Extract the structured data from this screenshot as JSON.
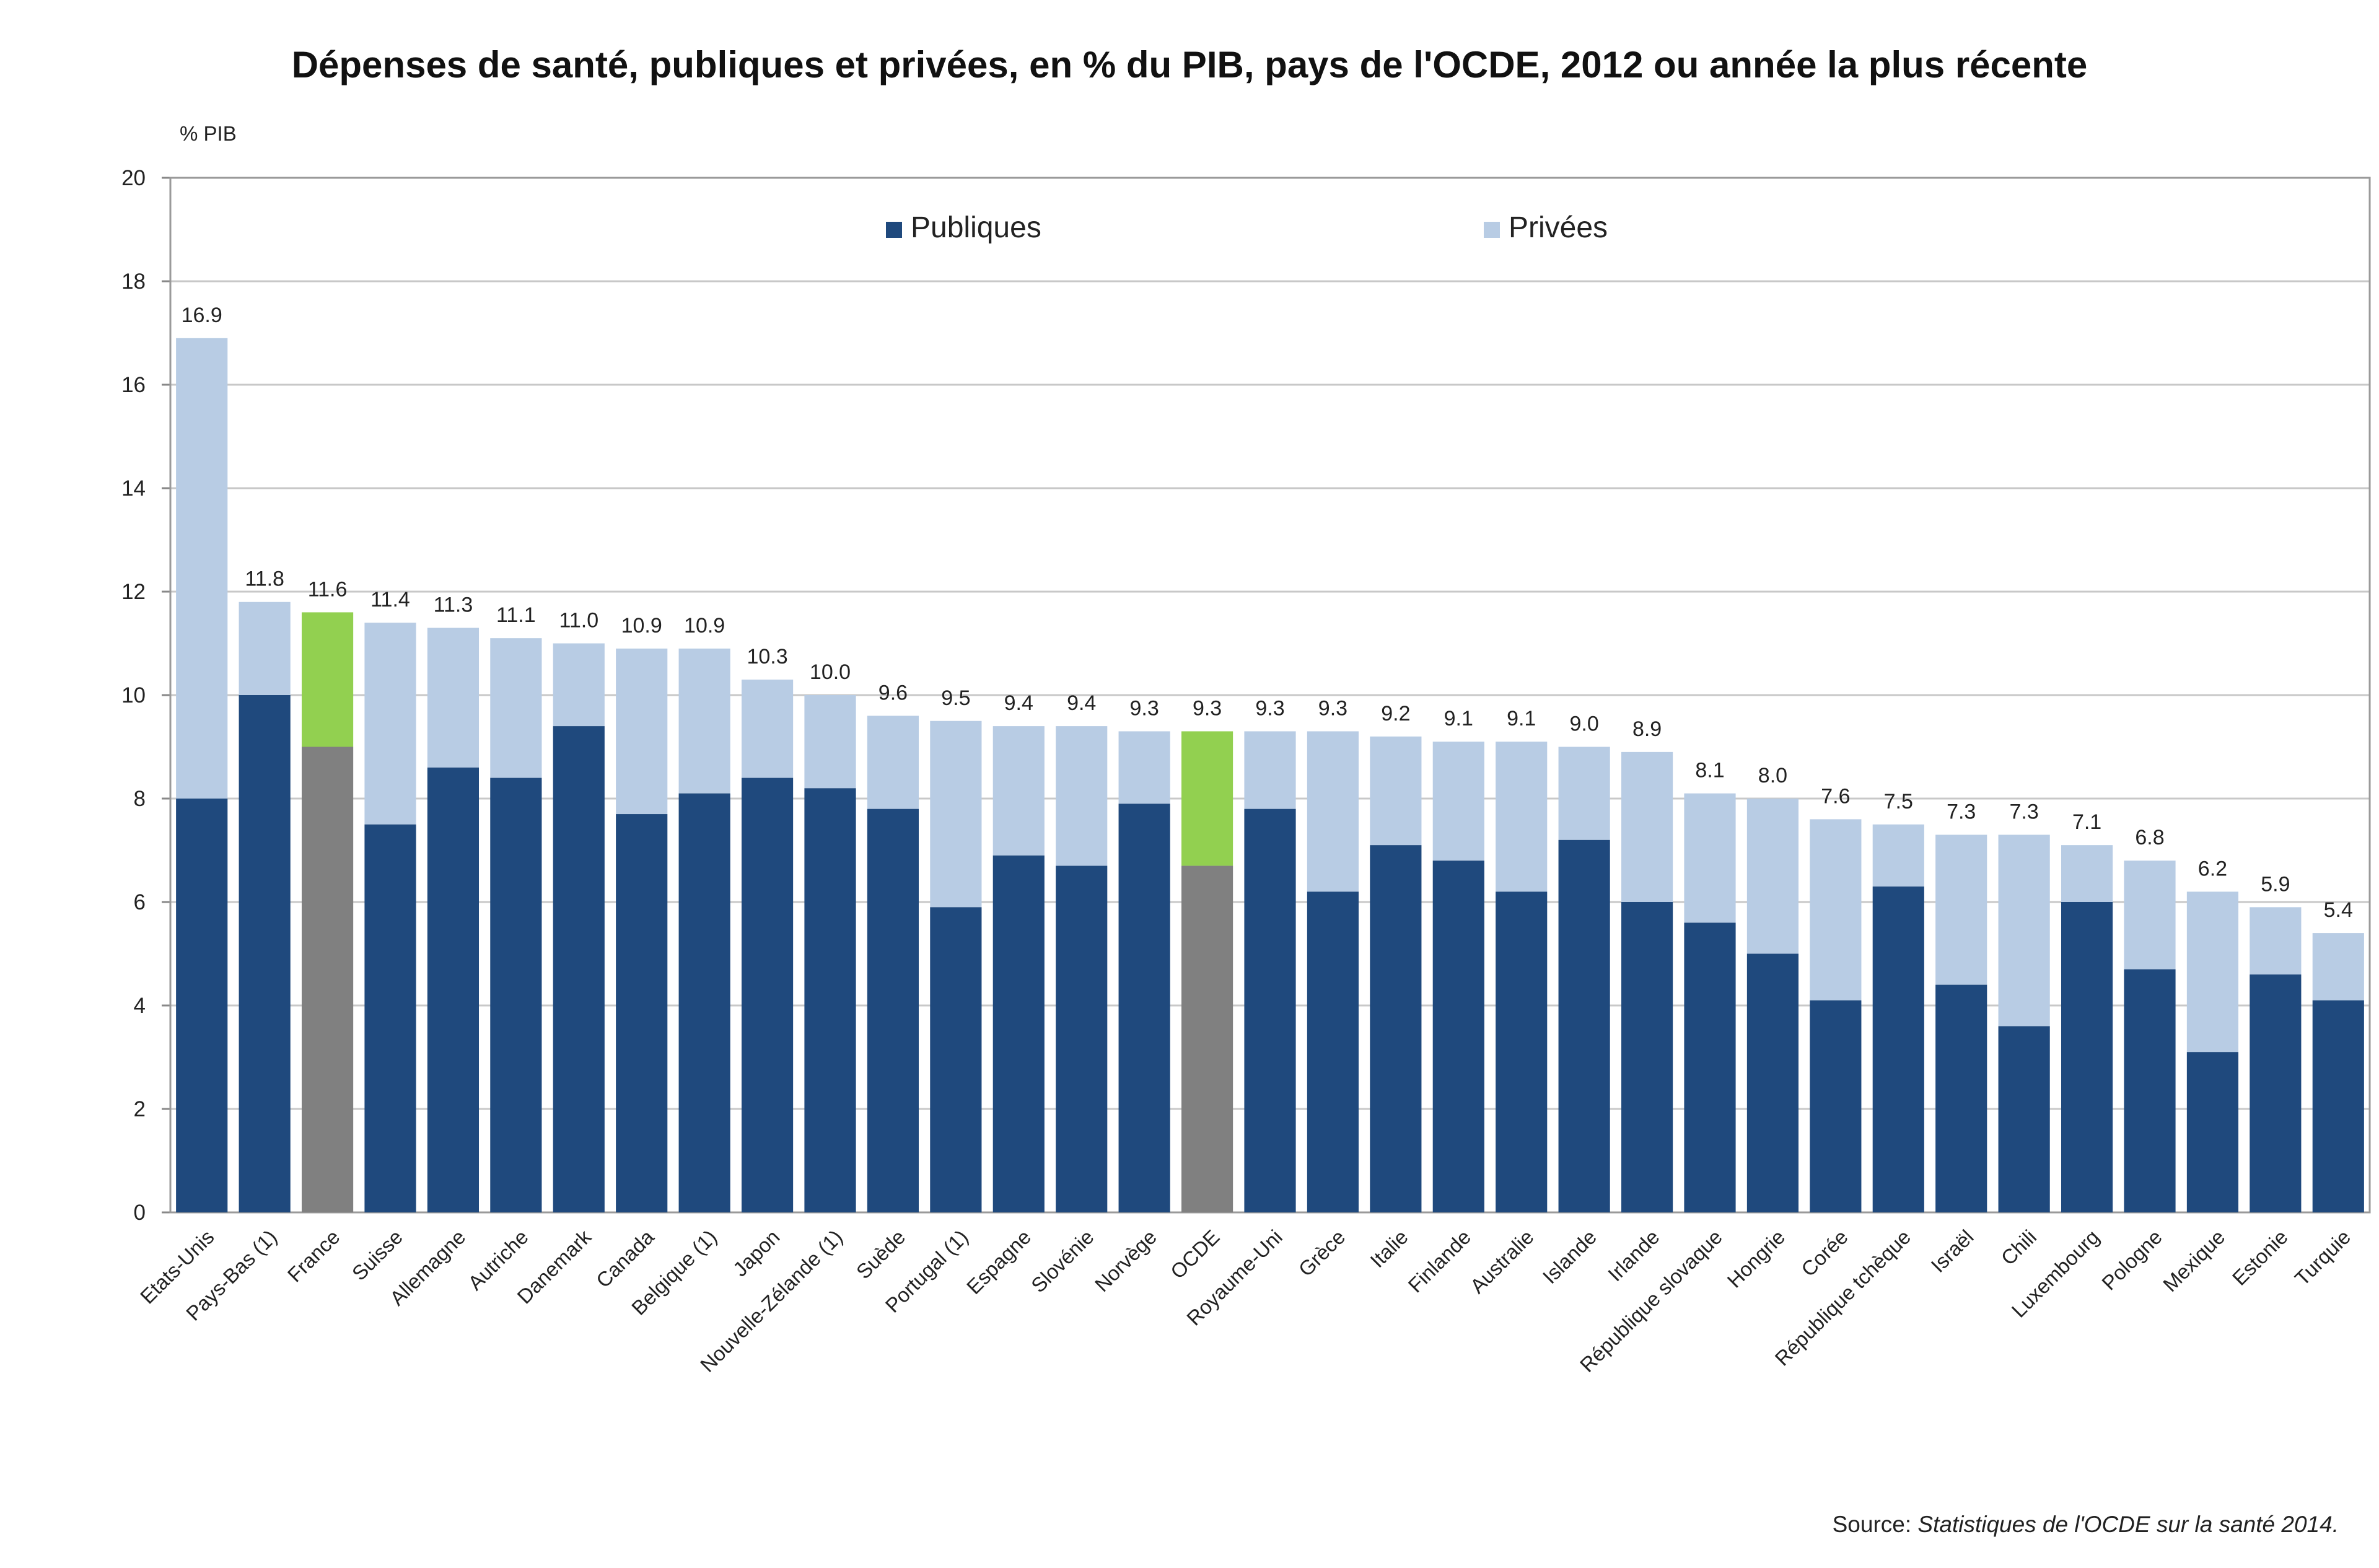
{
  "chart_data": {
    "type": "bar",
    "stacked": true,
    "title": "Dépenses de santé, publiques et privées, en % du PIB, pays de l'OCDE, 2012 ou année la plus récente",
    "ylabel": "% PIB",
    "xlabel": "",
    "ylim": [
      0,
      20
    ],
    "yticks": [
      0,
      2,
      4,
      6,
      8,
      10,
      12,
      14,
      16,
      18,
      20
    ],
    "grid": true,
    "legend_position": "top-center",
    "categories": [
      "Etats-Unis",
      "Pays-Bas (1)",
      "France",
      "Suisse",
      "Allemagne",
      "Autriche",
      "Danemark",
      "Canada",
      "Belgique (1)",
      "Japon",
      "Nouvelle-Zélande (1)",
      "Suède",
      "Portugal (1)",
      "Espagne",
      "Slovénie",
      "Norvège",
      "OCDE",
      "Royaume-Uni",
      "Grèce",
      "Italie",
      "Finlande",
      "Australie",
      "Islande",
      "Irlande",
      "République slovaque",
      "Hongrie",
      "Corée",
      "République tchèque",
      "Israël",
      "Chili",
      "Luxembourg",
      "Pologne",
      "Mexique",
      "Estonie",
      "Turquie"
    ],
    "series": [
      {
        "name": "Publiques",
        "color": "#1f497d",
        "values": [
          8.0,
          10.0,
          9.0,
          7.5,
          8.6,
          8.4,
          9.4,
          7.7,
          8.1,
          8.4,
          8.2,
          7.8,
          5.9,
          6.9,
          6.7,
          7.9,
          6.7,
          7.8,
          6.2,
          7.1,
          6.8,
          6.2,
          7.2,
          6.0,
          5.6,
          5.0,
          4.1,
          6.3,
          4.4,
          3.6,
          6.0,
          4.7,
          3.1,
          4.6,
          4.1
        ]
      },
      {
        "name": "Privées",
        "color": "#b8cce4",
        "values": [
          8.9,
          1.8,
          2.6,
          3.9,
          2.7,
          2.7,
          1.6,
          3.2,
          2.8,
          1.9,
          1.8,
          1.8,
          3.6,
          2.5,
          2.7,
          1.4,
          2.6,
          1.5,
          3.1,
          2.1,
          2.3,
          2.9,
          1.8,
          2.9,
          2.5,
          3.0,
          3.5,
          1.2,
          2.9,
          3.7,
          1.1,
          2.1,
          3.1,
          1.3,
          1.3
        ]
      }
    ],
    "totals": [
      16.9,
      11.8,
      11.6,
      11.4,
      11.3,
      11.1,
      11.0,
      10.9,
      10.9,
      10.3,
      10.0,
      9.6,
      9.5,
      9.4,
      9.4,
      9.3,
      9.3,
      9.3,
      9.3,
      9.2,
      9.1,
      9.1,
      9.0,
      8.9,
      8.1,
      8.0,
      7.6,
      7.5,
      7.3,
      7.3,
      7.1,
      6.8,
      6.2,
      5.9,
      5.4
    ],
    "total_labels": [
      "16.9",
      "11.8",
      "11.6",
      "11.4",
      "11.3",
      "11.1",
      "11.0",
      "10.9",
      "10.9",
      "10.3",
      "10.0",
      "9.6",
      "9.5",
      "9.4",
      "9.4",
      "9.3",
      "9.3",
      "9.3",
      "9.3",
      "9.2",
      "9.1",
      "9.1",
      "9.0",
      "8.9",
      "8.1",
      "8.0",
      "7.6",
      "7.5",
      "7.3",
      "7.3",
      "7.1",
      "6.8",
      "6.2",
      "5.9",
      "5.4"
    ],
    "highlights": [
      {
        "category": "France",
        "public_color": "#808080",
        "private_color": "#92d050"
      },
      {
        "category": "OCDE",
        "public_color": "#808080",
        "private_color": "#92d050"
      }
    ]
  },
  "source": {
    "prefix": "Source: ",
    "title": "Statistiques de l'OCDE sur la santé 2014."
  }
}
